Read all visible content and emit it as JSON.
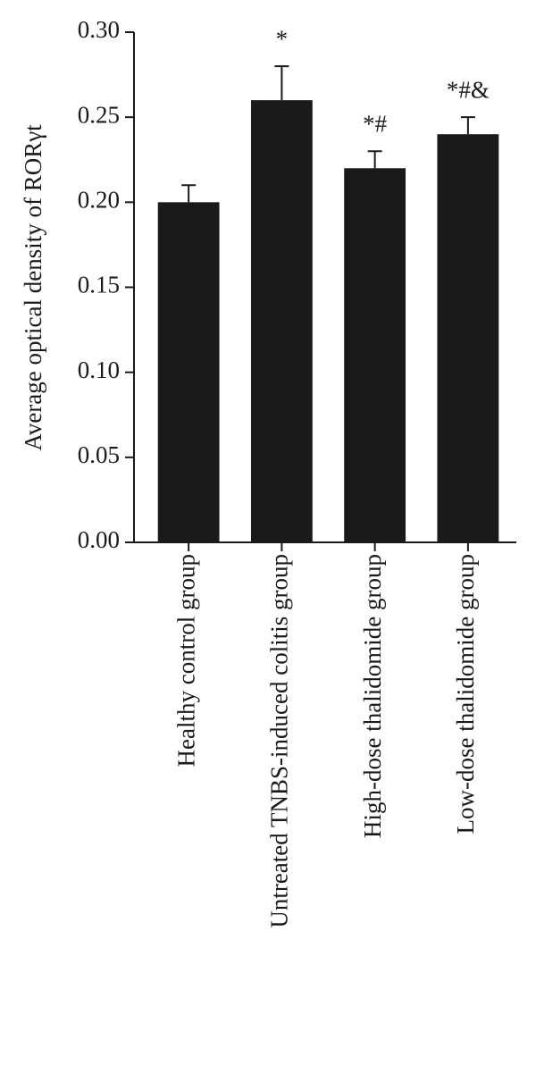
{
  "chart_data": {
    "type": "bar",
    "y_label": "Average optical density of RORγt",
    "categories": [
      "Healthy control group",
      "Untreated TNBS-induced colitis group",
      "High-dose thalidomide group",
      "Low-dose thalidomide group"
    ],
    "values": [
      0.2,
      0.26,
      0.22,
      0.24
    ],
    "errors": [
      0.01,
      0.02,
      0.01,
      0.01
    ],
    "annotations": [
      null,
      "*",
      "*#",
      "*#&"
    ],
    "color": "#1a1a1a",
    "ylim": [
      0,
      0.3
    ],
    "yticks": [
      {
        "value": 0,
        "label": "0.00"
      },
      {
        "value": 0.05,
        "label": "0.05"
      },
      {
        "value": 0.1,
        "label": "0.10"
      },
      {
        "value": 0.15,
        "label": "0.15"
      },
      {
        "value": 0.2,
        "label": "0.20"
      },
      {
        "value": 0.25,
        "label": "0.25"
      },
      {
        "value": 0.3,
        "label": "0.30"
      }
    ],
    "grid": false
  }
}
